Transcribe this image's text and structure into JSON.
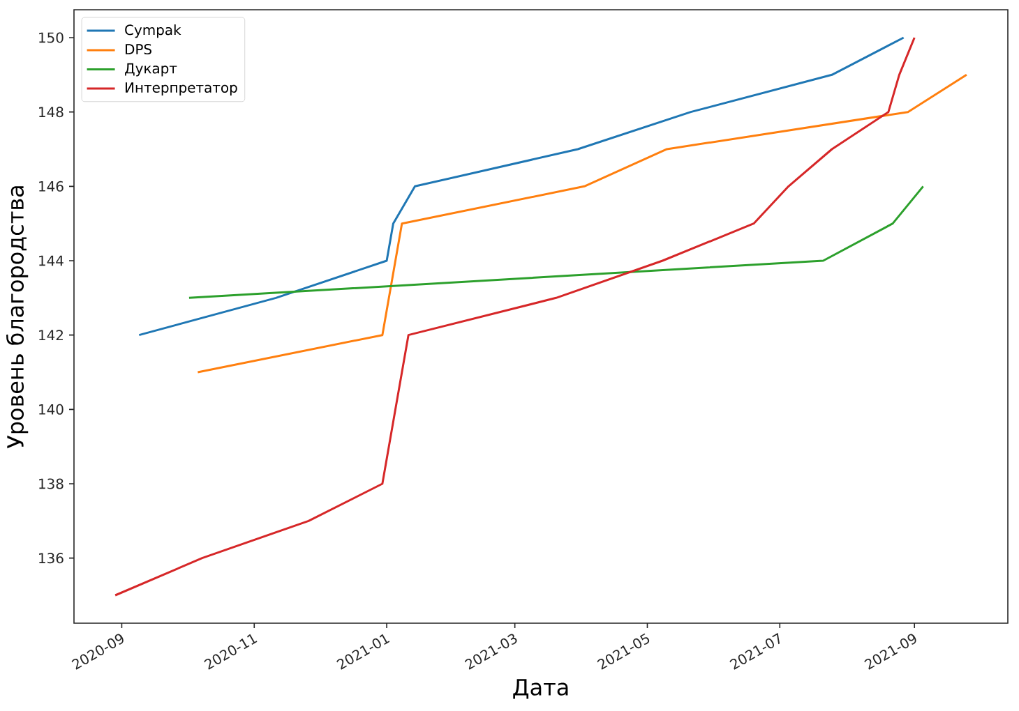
{
  "chart_data": {
    "type": "line",
    "xlabel": "Дата",
    "ylabel": "Уровень благородства",
    "xlim": [
      "2020-08-10",
      "2021-10-14"
    ],
    "xticks": [
      {
        "value": "2020-09-01",
        "label": "2020-09"
      },
      {
        "value": "2020-11-01",
        "label": "2020-11"
      },
      {
        "value": "2021-01-01",
        "label": "2021-01"
      },
      {
        "value": "2021-03-01",
        "label": "2021-03"
      },
      {
        "value": "2021-05-01",
        "label": "2021-05"
      },
      {
        "value": "2021-07-01",
        "label": "2021-07"
      },
      {
        "value": "2021-09-01",
        "label": "2021-09"
      }
    ],
    "ylim": [
      134.25,
      150.75
    ],
    "yticks": [
      136,
      138,
      140,
      142,
      144,
      146,
      148,
      150
    ],
    "legend": "top left",
    "marker": "none",
    "line_style": "solid",
    "series": [
      {
        "name": "Cympak",
        "color": "#1f77b4",
        "x": [
          "2020-09-09",
          "2020-11-11",
          "2021-01-01",
          "2021-01-04",
          "2021-01-14",
          "2021-03-30",
          "2021-05-21",
          "2021-07-25",
          "2021-08-27"
        ],
        "values": [
          142,
          143,
          144,
          145,
          146,
          147,
          148,
          149,
          150
        ]
      },
      {
        "name": "DPS",
        "color": "#ff7f0e",
        "x": [
          "2020-10-06",
          "2020-12-30",
          "2021-01-08",
          "2021-04-02",
          "2021-05-10",
          "2021-08-29",
          "2021-09-25"
        ],
        "values": [
          141,
          142,
          145,
          146,
          147,
          148,
          149
        ]
      },
      {
        "name": "Дукарт",
        "color": "#2ca02c",
        "x": [
          "2020-10-02",
          "2021-07-21",
          "2021-08-22",
          "2021-09-05"
        ],
        "values": [
          143,
          144,
          145,
          146
        ]
      },
      {
        "name": "Интерпретатор",
        "color": "#d62728",
        "x": [
          "2020-08-29",
          "2020-10-08",
          "2020-11-26",
          "2020-12-30",
          "2021-01-05",
          "2021-01-11",
          "2021-03-20",
          "2021-05-08",
          "2021-06-19",
          "2021-07-05",
          "2021-07-25",
          "2021-08-20",
          "2021-08-25",
          "2021-09-01"
        ],
        "values": [
          135,
          136,
          137,
          138,
          140,
          142,
          143,
          144,
          145,
          146,
          147,
          148,
          149,
          150
        ]
      }
    ]
  }
}
